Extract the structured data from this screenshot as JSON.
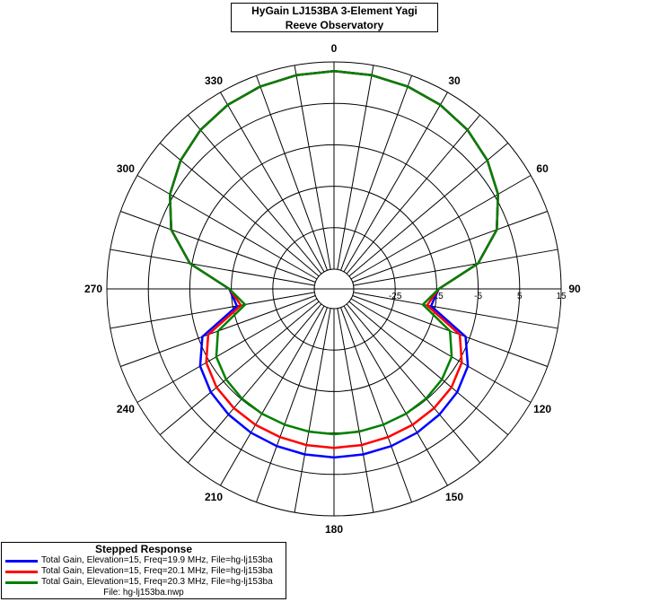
{
  "chart_data": {
    "type": "polar-line",
    "title": "HyGain LJ153BA 3-Element Yagi",
    "subtitle": "Reeve Observatory",
    "angle_labels": [
      "0",
      "30",
      "60",
      "90",
      "120",
      "150",
      "180",
      "210",
      "240",
      "270",
      "300",
      "330"
    ],
    "radial_ticks": [
      -25,
      -15,
      -5,
      5,
      15
    ],
    "radial_tick_labels": [
      "-25",
      "-15",
      "-5",
      "5",
      "15"
    ],
    "r_range": [
      -35,
      15
    ],
    "angle_step_deg": 10,
    "legend": {
      "title": "Stepped Response",
      "file": "File: hg-lj153ba.nwp"
    },
    "angles_deg": [
      0,
      10,
      20,
      30,
      40,
      50,
      60,
      70,
      80,
      90,
      100,
      110,
      120,
      130,
      140,
      150,
      160,
      170,
      180,
      190,
      200,
      210,
      220,
      230,
      240,
      250,
      260,
      270,
      280,
      290,
      300,
      310,
      320,
      330,
      340,
      350,
      360
    ],
    "series": [
      {
        "name": "Total Gain, Elevation=15, Freq=19.9 MHz, File=hg-lj153ba",
        "color": "#0000ff",
        "values": [
          12.8,
          12.6,
          12.2,
          11.5,
          10.3,
          8.5,
          5.9,
          2.0,
          -4.5,
          -14.5,
          -16,
          -6,
          -2.5,
          -1.0,
          -0.2,
          0.3,
          0.6,
          0.8,
          0.9,
          0.8,
          0.6,
          0.3,
          -0.2,
          -1.0,
          -2.5,
          -6,
          -16,
          -14.5,
          -4.5,
          2.0,
          5.9,
          8.5,
          10.3,
          11.5,
          12.2,
          12.6,
          12.8
        ]
      },
      {
        "name": "Total Gain, Elevation=15, Freq=20.1 MHz, File=hg-lj153ba",
        "color": "#ff0000",
        "values": [
          12.8,
          12.6,
          12.2,
          11.5,
          10.3,
          8.5,
          5.9,
          2.0,
          -4.5,
          -14.5,
          -17,
          -7.5,
          -4.2,
          -2.8,
          -2.2,
          -1.9,
          -1.7,
          -1.5,
          -1.4,
          -1.5,
          -1.7,
          -1.9,
          -2.2,
          -2.8,
          -4.2,
          -7.5,
          -17,
          -14.5,
          -4.5,
          2.0,
          5.9,
          8.5,
          10.3,
          11.5,
          12.2,
          12.6,
          12.8
        ]
      },
      {
        "name": "Total Gain, Elevation=15, Freq=20.3 MHz, File=hg-lj153ba",
        "color": "#008000",
        "values": [
          12.8,
          12.6,
          12.2,
          11.5,
          10.3,
          8.5,
          5.9,
          2.0,
          -4.5,
          -14.5,
          -18,
          -10,
          -7.0,
          -5.8,
          -5.2,
          -5.0,
          -4.9,
          -4.8,
          -4.7,
          -4.8,
          -4.9,
          -5.0,
          -5.2,
          -5.8,
          -7.0,
          -10,
          -18,
          -14.5,
          -4.5,
          2.0,
          5.9,
          8.5,
          10.3,
          11.5,
          12.2,
          12.6,
          12.8
        ]
      }
    ]
  }
}
